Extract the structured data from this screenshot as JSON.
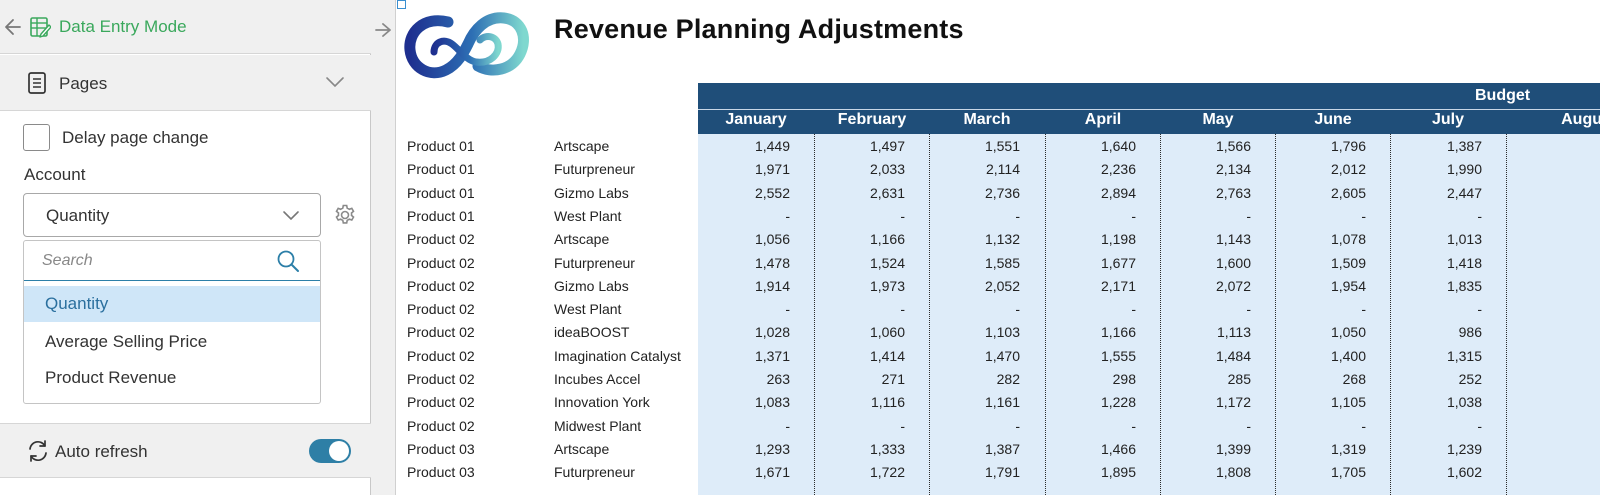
{
  "sidebar": {
    "mode_label": "Data Entry Mode",
    "pages_label": "Pages",
    "delay_label": "Delay page change",
    "account_label": "Account",
    "account_value": "Quantity",
    "search_placeholder": "Search",
    "options": [
      "Quantity",
      "Average Selling Price",
      "Product Revenue"
    ],
    "selected_option": "Quantity",
    "auto_refresh_label": "Auto refresh",
    "auto_refresh_on": true,
    "mode_color": "#3aa85c",
    "toggle_color": "#2e7fa6"
  },
  "report": {
    "title": "Revenue Planning Adjustments",
    "header_group": "Budget",
    "header_color": "#1f4e79",
    "cell_bg_color": "#deecf9",
    "months": [
      "January",
      "February",
      "March",
      "April",
      "May",
      "June",
      "July",
      "Augu"
    ],
    "rows": [
      {
        "product": "Product 01",
        "customer": "Artscape",
        "values": [
          "1,449",
          "1,497",
          "1,551",
          "1,640",
          "1,566",
          "1,796",
          "1,387"
        ]
      },
      {
        "product": "Product 01",
        "customer": "Futurpreneur",
        "values": [
          "1,971",
          "2,033",
          "2,114",
          "2,236",
          "2,134",
          "2,012",
          "1,990"
        ]
      },
      {
        "product": "Product 01",
        "customer": "Gizmo Labs",
        "values": [
          "2,552",
          "2,631",
          "2,736",
          "2,894",
          "2,763",
          "2,605",
          "2,447"
        ]
      },
      {
        "product": "Product 01",
        "customer": "West Plant",
        "values": [
          "-",
          "-",
          "-",
          "-",
          "-",
          "-",
          "-"
        ]
      },
      {
        "product": "Product 02",
        "customer": "Artscape",
        "values": [
          "1,056",
          "1,166",
          "1,132",
          "1,198",
          "1,143",
          "1,078",
          "1,013"
        ]
      },
      {
        "product": "Product 02",
        "customer": "Futurpreneur",
        "values": [
          "1,478",
          "1,524",
          "1,585",
          "1,677",
          "1,600",
          "1,509",
          "1,418"
        ]
      },
      {
        "product": "Product 02",
        "customer": "Gizmo Labs",
        "values": [
          "1,914",
          "1,973",
          "2,052",
          "2,171",
          "2,072",
          "1,954",
          "1,835"
        ]
      },
      {
        "product": "Product 02",
        "customer": "West Plant",
        "values": [
          "-",
          "-",
          "-",
          "-",
          "-",
          "-",
          "-"
        ]
      },
      {
        "product": "Product 02",
        "customer": "ideaBOOST",
        "values": [
          "1,028",
          "1,060",
          "1,103",
          "1,166",
          "1,113",
          "1,050",
          "986"
        ]
      },
      {
        "product": "Product 02",
        "customer": "Imagination Catalyst",
        "values": [
          "1,371",
          "1,414",
          "1,470",
          "1,555",
          "1,484",
          "1,400",
          "1,315"
        ]
      },
      {
        "product": "Product 02",
        "customer": "Incubes Accel",
        "values": [
          "263",
          "271",
          "282",
          "298",
          "285",
          "268",
          "252"
        ]
      },
      {
        "product": "Product 02",
        "customer": "Innovation York",
        "values": [
          "1,083",
          "1,116",
          "1,161",
          "1,228",
          "1,172",
          "1,105",
          "1,038"
        ]
      },
      {
        "product": "Product 02",
        "customer": "Midwest Plant",
        "values": [
          "-",
          "-",
          "-",
          "-",
          "-",
          "-",
          "-"
        ]
      },
      {
        "product": "Product 03",
        "customer": "Artscape",
        "values": [
          "1,293",
          "1,333",
          "1,387",
          "1,466",
          "1,399",
          "1,319",
          "1,239"
        ]
      },
      {
        "product": "Product 03",
        "customer": "Futurpreneur",
        "values": [
          "1,671",
          "1,722",
          "1,791",
          "1,895",
          "1,808",
          "1,705",
          "1,602"
        ]
      }
    ]
  }
}
